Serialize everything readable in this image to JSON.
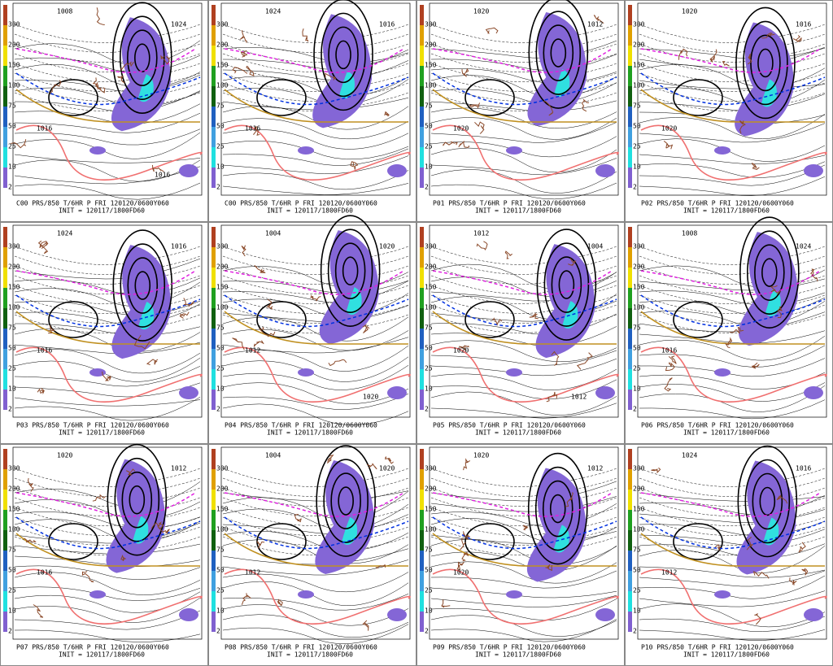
{
  "colorbar": {
    "labels": [
      "300",
      "200",
      "150",
      "100",
      "75",
      "50",
      "25",
      "10",
      "2"
    ]
  },
  "panels": [
    {
      "caption": "C00 PRS/850 T/6HR P FRI 120120/0600Y060",
      "init": "INIT = 120117/1800FD60",
      "labels": [
        "1008",
        "1024",
        "1016",
        "1016"
      ]
    },
    {
      "caption": "C00 PRS/850 T/6HR P FRI 120120/0600Y060",
      "init": "INIT = 120117/1800FD60",
      "labels": [
        "1024",
        "1016",
        "1016"
      ]
    },
    {
      "caption": "P01 PRS/850 T/6HR P FRI 120120/0600Y060",
      "init": "INIT = 120117/1800FD60",
      "labels": [
        "1020",
        "1012",
        "1020"
      ]
    },
    {
      "caption": "P02 PRS/850 T/6HR P FRI 120120/0600Y060",
      "init": "INIT = 120117/1800FD60",
      "labels": [
        "1020",
        "1016",
        "1020"
      ]
    },
    {
      "caption": "P03 PRS/850 T/6HR P FRI 120120/0600Y060",
      "init": "INIT = 120117/1800FD60",
      "labels": [
        "1024",
        "1016",
        "1016"
      ]
    },
    {
      "caption": "P04 PRS/850 T/6HR P FRI 120120/0600Y060",
      "init": "INIT = 120117/1800FD60",
      "labels": [
        "1004",
        "1020",
        "1012",
        "1020"
      ]
    },
    {
      "caption": "P05 PRS/850 T/6HR P FRI 120120/0600Y060",
      "init": "INIT = 120117/1800FD60",
      "labels": [
        "1012",
        "1004",
        "1020",
        "1012"
      ]
    },
    {
      "caption": "P06 PRS/850 T/6HR P FRI 120120/0600Y060",
      "init": "INIT = 120117/1800FD60",
      "labels": [
        "1008",
        "1024",
        "1016"
      ]
    },
    {
      "caption": "P07 PRS/850 T/6HR P FRI 120120/0600Y060",
      "init": "INIT = 120117/1800FD60",
      "labels": [
        "1020",
        "1012",
        "1016"
      ]
    },
    {
      "caption": "P08 PRS/850 T/6HR P FRI 120120/0600Y060",
      "init": "INIT = 120117/1800FD60",
      "labels": [
        "1004",
        "1020",
        "1012"
      ]
    },
    {
      "caption": "P09 PRS/850 T/6HR P FRI 120120/0600Y060",
      "init": "INIT = 120117/1800FD60",
      "labels": [
        "1020",
        "1012",
        "1020"
      ]
    },
    {
      "caption": "P10 PRS/850 T/6HR P FRI 120120/0600Y060",
      "init": "INIT = 120117/1800FD60",
      "labels": [
        "1024",
        "1016",
        "1012"
      ]
    }
  ]
}
